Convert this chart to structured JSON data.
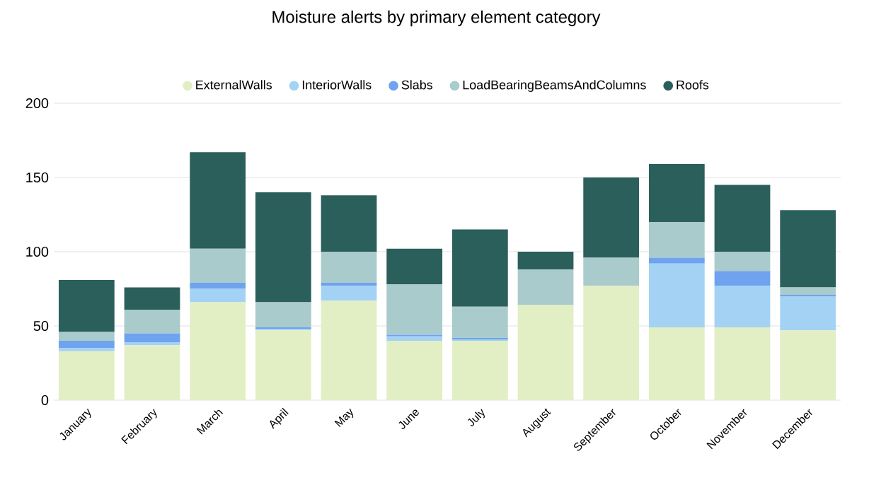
{
  "chart_data": {
    "type": "bar",
    "title": "Moisture alerts by primary element category",
    "categories": [
      "January",
      "February",
      "March",
      "April",
      "May",
      "June",
      "July",
      "August",
      "September",
      "October",
      "November",
      "December"
    ],
    "series": [
      {
        "name": "ExternalWalls",
        "color": "#e2efc4",
        "values": [
          33,
          37,
          66,
          47,
          67,
          40,
          40,
          64,
          77,
          49,
          49,
          47
        ]
      },
      {
        "name": "InteriorWalls",
        "color": "#a3d2f5",
        "values": [
          2,
          2,
          9,
          1,
          10,
          3,
          1,
          0,
          0,
          43,
          28,
          23
        ]
      },
      {
        "name": "Slabs",
        "color": "#6fa3ef",
        "values": [
          5,
          6,
          4,
          1,
          2,
          1,
          1,
          0,
          0,
          4,
          10,
          1
        ]
      },
      {
        "name": "LoadBearingBeamsAndColumns",
        "color": "#a9cbcb",
        "values": [
          6,
          16,
          23,
          17,
          21,
          34,
          21,
          24,
          19,
          24,
          13,
          5
        ]
      },
      {
        "name": "Roofs",
        "color": "#2b5f5c",
        "values": [
          35,
          15,
          65,
          74,
          38,
          24,
          52,
          12,
          54,
          39,
          45,
          52
        ]
      }
    ],
    "stacked": true,
    "ylim": [
      0,
      200
    ],
    "yticks": [
      0,
      50,
      100,
      150,
      200
    ],
    "grid": "y",
    "legend": "top"
  }
}
